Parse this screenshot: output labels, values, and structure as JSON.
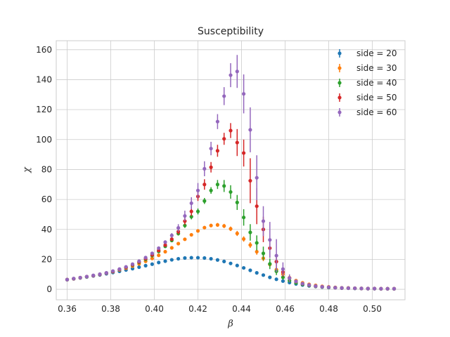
{
  "chart_data": {
    "type": "scatter",
    "title": "Susceptibility",
    "xlabel": "β",
    "ylabel": "χ",
    "xlim": [
      0.355,
      0.515
    ],
    "ylim": [
      -7,
      166
    ],
    "xticks": [
      0.36,
      0.38,
      0.4,
      0.42,
      0.44,
      0.46,
      0.48,
      0.5
    ],
    "xtick_labels": [
      "0.36",
      "0.38",
      "0.40",
      "0.42",
      "0.44",
      "0.46",
      "0.48",
      "0.50"
    ],
    "yticks": [
      0,
      20,
      40,
      60,
      80,
      100,
      120,
      140,
      160
    ],
    "ytick_labels": [
      "0",
      "20",
      "40",
      "60",
      "80",
      "100",
      "120",
      "140",
      "160"
    ],
    "grid": true,
    "legend_position": "top-right",
    "series": [
      {
        "name": "side = 20",
        "color": "#1f77b4",
        "x": [
          0.36,
          0.363,
          0.366,
          0.369,
          0.372,
          0.375,
          0.378,
          0.381,
          0.384,
          0.387,
          0.39,
          0.393,
          0.396,
          0.399,
          0.402,
          0.405,
          0.408,
          0.411,
          0.414,
          0.417,
          0.42,
          0.423,
          0.426,
          0.429,
          0.432,
          0.435,
          0.438,
          0.441,
          0.444,
          0.447,
          0.45,
          0.453,
          0.456,
          0.459,
          0.462,
          0.465,
          0.468,
          0.471,
          0.474,
          0.477,
          0.48,
          0.483,
          0.486,
          0.489,
          0.492,
          0.495,
          0.498,
          0.501,
          0.504,
          0.507,
          0.51
        ],
        "y": [
          6.4,
          7.0,
          7.6,
          8.2,
          8.9,
          9.6,
          10.4,
          11.2,
          12.0,
          12.9,
          13.8,
          14.8,
          15.8,
          16.8,
          17.9,
          18.8,
          19.7,
          20.4,
          20.9,
          21.1,
          21.1,
          20.9,
          20.4,
          19.6,
          18.6,
          17.3,
          15.9,
          14.3,
          12.7,
          11.0,
          9.5,
          8.0,
          6.7,
          5.5,
          4.5,
          3.6,
          2.9,
          2.3,
          1.9,
          1.5,
          1.2,
          1.0,
          0.8,
          0.7,
          0.6,
          0.5,
          0.4,
          0.4,
          0.3,
          0.3,
          0.3
        ],
        "err": [
          0.2,
          0.2,
          0.2,
          0.2,
          0.2,
          0.2,
          0.3,
          0.3,
          0.3,
          0.3,
          0.3,
          0.3,
          0.4,
          0.4,
          0.4,
          0.4,
          0.4,
          0.5,
          0.5,
          0.5,
          0.5,
          0.5,
          0.5,
          0.5,
          0.5,
          0.5,
          0.5,
          0.4,
          0.4,
          0.4,
          0.4,
          0.3,
          0.3,
          0.3,
          0.2,
          0.2,
          0.2,
          0.2,
          0.1,
          0.1,
          0.1,
          0.1,
          0.1,
          0.1,
          0.1,
          0.1,
          0.1,
          0.1,
          0.1,
          0.1,
          0.1
        ]
      },
      {
        "name": "side = 30",
        "color": "#ff7f0e",
        "x": [
          0.36,
          0.363,
          0.366,
          0.369,
          0.372,
          0.375,
          0.378,
          0.381,
          0.384,
          0.387,
          0.39,
          0.393,
          0.396,
          0.399,
          0.402,
          0.405,
          0.408,
          0.411,
          0.414,
          0.417,
          0.42,
          0.423,
          0.426,
          0.429,
          0.432,
          0.435,
          0.438,
          0.441,
          0.444,
          0.447,
          0.45,
          0.453,
          0.456,
          0.459,
          0.462,
          0.465,
          0.468,
          0.471,
          0.474,
          0.477,
          0.48,
          0.483,
          0.486,
          0.489,
          0.492,
          0.495,
          0.498,
          0.501,
          0.504,
          0.507,
          0.51
        ],
        "y": [
          6.5,
          7.1,
          7.7,
          8.4,
          9.1,
          9.9,
          10.8,
          11.8,
          12.9,
          14.1,
          15.5,
          17.0,
          18.7,
          20.6,
          22.7,
          25.1,
          27.7,
          30.5,
          33.4,
          36.4,
          39.0,
          41.2,
          42.6,
          43.0,
          42.3,
          40.4,
          37.3,
          33.6,
          29.6,
          25.1,
          20.7,
          16.6,
          13.1,
          10.1,
          7.7,
          5.8,
          4.3,
          3.3,
          2.6,
          2.0,
          1.6,
          1.3,
          1.0,
          0.9,
          0.7,
          0.6,
          0.5,
          0.5,
          0.4,
          0.4,
          0.4
        ],
        "err": [
          0.2,
          0.2,
          0.2,
          0.2,
          0.3,
          0.3,
          0.3,
          0.3,
          0.4,
          0.4,
          0.4,
          0.5,
          0.5,
          0.6,
          0.6,
          0.7,
          0.7,
          0.8,
          0.9,
          0.9,
          1.0,
          1.1,
          1.2,
          1.3,
          1.4,
          1.5,
          1.7,
          1.8,
          1.9,
          2.0,
          1.9,
          1.7,
          1.5,
          1.2,
          0.9,
          0.7,
          0.5,
          0.4,
          0.3,
          0.2,
          0.2,
          0.2,
          0.1,
          0.1,
          0.1,
          0.1,
          0.1,
          0.1,
          0.1,
          0.1,
          0.1
        ]
      },
      {
        "name": "side = 40",
        "color": "#2ca02c",
        "x": [
          0.36,
          0.363,
          0.366,
          0.369,
          0.372,
          0.375,
          0.378,
          0.381,
          0.384,
          0.387,
          0.39,
          0.393,
          0.396,
          0.399,
          0.402,
          0.405,
          0.408,
          0.411,
          0.414,
          0.417,
          0.42,
          0.423,
          0.426,
          0.429,
          0.432,
          0.435,
          0.438,
          0.441,
          0.444,
          0.447,
          0.45,
          0.453,
          0.456,
          0.459,
          0.462,
          0.465,
          0.468,
          0.471,
          0.474,
          0.477,
          0.48,
          0.483,
          0.486,
          0.489,
          0.492,
          0.495,
          0.498,
          0.501,
          0.504,
          0.507,
          0.51
        ],
        "y": [
          6.5,
          7.1,
          7.8,
          8.4,
          9.2,
          10.0,
          10.9,
          12.0,
          13.2,
          14.6,
          16.2,
          18.0,
          20.0,
          22.5,
          25.3,
          28.7,
          32.6,
          37.2,
          42.6,
          48.5,
          52.0,
          59.0,
          66.0,
          70.0,
          69.0,
          65.0,
          58.0,
          48.0,
          38.0,
          31.0,
          24.0,
          17.0,
          12.0,
          8.0,
          5.8,
          4.3,
          3.3,
          2.6,
          2.0,
          1.6,
          1.3,
          1.1,
          0.9,
          0.8,
          0.7,
          0.6,
          0.5,
          0.5,
          0.4,
          0.4,
          0.4
        ],
        "err": [
          0.2,
          0.2,
          0.2,
          0.2,
          0.3,
          0.3,
          0.3,
          0.4,
          0.4,
          0.4,
          0.5,
          0.5,
          0.6,
          0.7,
          0.7,
          0.8,
          1.0,
          1.3,
          1.6,
          1.8,
          2.0,
          2.0,
          2.2,
          3.0,
          4.0,
          4.5,
          5.0,
          5.5,
          5.5,
          5.0,
          4.5,
          3.5,
          2.5,
          1.5,
          1.0,
          0.6,
          0.4,
          0.3,
          0.2,
          0.2,
          0.2,
          0.1,
          0.1,
          0.1,
          0.1,
          0.1,
          0.1,
          0.1,
          0.1,
          0.1,
          0.1
        ]
      },
      {
        "name": "side = 50",
        "color": "#d62728",
        "x": [
          0.36,
          0.363,
          0.366,
          0.369,
          0.372,
          0.375,
          0.378,
          0.381,
          0.384,
          0.387,
          0.39,
          0.393,
          0.396,
          0.399,
          0.402,
          0.405,
          0.408,
          0.411,
          0.414,
          0.417,
          0.42,
          0.423,
          0.426,
          0.429,
          0.432,
          0.435,
          0.438,
          0.441,
          0.444,
          0.447,
          0.45,
          0.453,
          0.456,
          0.459,
          0.462,
          0.465,
          0.468,
          0.471,
          0.474,
          0.477,
          0.48,
          0.483,
          0.486,
          0.489,
          0.492,
          0.495,
          0.498,
          0.501,
          0.504,
          0.507,
          0.51
        ],
        "y": [
          6.5,
          7.1,
          7.8,
          8.5,
          9.2,
          10.0,
          10.9,
          12.0,
          13.3,
          14.7,
          16.4,
          18.3,
          20.5,
          23.0,
          26.0,
          29.5,
          33.5,
          38.5,
          45.5,
          52.0,
          62.0,
          70.0,
          81.5,
          92.5,
          100.5,
          106.0,
          98.0,
          91.0,
          72.5,
          55.5,
          40.0,
          27.5,
          18.5,
          11.5,
          7.5,
          5.2,
          3.7,
          2.8,
          2.1,
          1.7,
          1.4,
          1.1,
          0.9,
          0.8,
          0.7,
          0.6,
          0.5,
          0.5,
          0.4,
          0.4,
          0.4
        ],
        "err": [
          0.2,
          0.2,
          0.2,
          0.3,
          0.3,
          0.3,
          0.3,
          0.4,
          0.4,
          0.5,
          0.5,
          0.6,
          0.7,
          0.8,
          0.9,
          1.0,
          1.3,
          1.8,
          2.5,
          3.0,
          3.0,
          3.5,
          3.5,
          4.0,
          4.0,
          5.0,
          9.0,
          9.0,
          15.0,
          12.0,
          8.5,
          6.5,
          4.5,
          3.0,
          1.5,
          0.8,
          0.5,
          0.3,
          0.2,
          0.2,
          0.2,
          0.1,
          0.1,
          0.1,
          0.1,
          0.1,
          0.1,
          0.1,
          0.1,
          0.1,
          0.1
        ]
      },
      {
        "name": "side = 60",
        "color": "#9467bd",
        "x": [
          0.36,
          0.363,
          0.366,
          0.369,
          0.372,
          0.375,
          0.378,
          0.381,
          0.384,
          0.387,
          0.39,
          0.393,
          0.396,
          0.399,
          0.402,
          0.405,
          0.408,
          0.411,
          0.414,
          0.417,
          0.42,
          0.423,
          0.426,
          0.429,
          0.432,
          0.435,
          0.438,
          0.441,
          0.444,
          0.447,
          0.45,
          0.453,
          0.456,
          0.459,
          0.462,
          0.465,
          0.468,
          0.471,
          0.474,
          0.477,
          0.48,
          0.483,
          0.486,
          0.489,
          0.492,
          0.495,
          0.498,
          0.501,
          0.504,
          0.507,
          0.51
        ],
        "y": [
          6.5,
          7.2,
          7.8,
          8.5,
          9.3,
          10.1,
          11.0,
          12.2,
          13.5,
          15.0,
          16.8,
          18.8,
          21.2,
          24.0,
          27.5,
          31.5,
          36.0,
          41.0,
          49.0,
          57.5,
          66.0,
          80.5,
          94.0,
          112.0,
          129.0,
          143.0,
          145.5,
          130.5,
          106.5,
          74.5,
          45.5,
          33.0,
          22.5,
          13.5,
          7.5,
          5.3,
          3.8,
          2.9,
          2.2,
          1.7,
          1.4,
          1.1,
          0.9,
          0.8,
          0.7,
          0.6,
          0.5,
          0.5,
          0.4,
          0.4,
          0.4
        ],
        "err": [
          0.2,
          0.2,
          0.2,
          0.3,
          0.3,
          0.3,
          0.4,
          0.4,
          0.4,
          0.5,
          0.6,
          0.7,
          0.8,
          0.9,
          1.0,
          1.2,
          1.5,
          2.5,
          3.5,
          4.0,
          5.0,
          5.0,
          4.5,
          5.0,
          6.0,
          8.0,
          11.0,
          13.0,
          15.0,
          15.0,
          10.0,
          12.0,
          11.0,
          4.5,
          2.5,
          1.2,
          0.6,
          0.4,
          0.3,
          0.2,
          0.2,
          0.2,
          0.1,
          0.1,
          0.1,
          0.1,
          0.1,
          0.1,
          0.1,
          0.1,
          0.1
        ]
      }
    ]
  }
}
